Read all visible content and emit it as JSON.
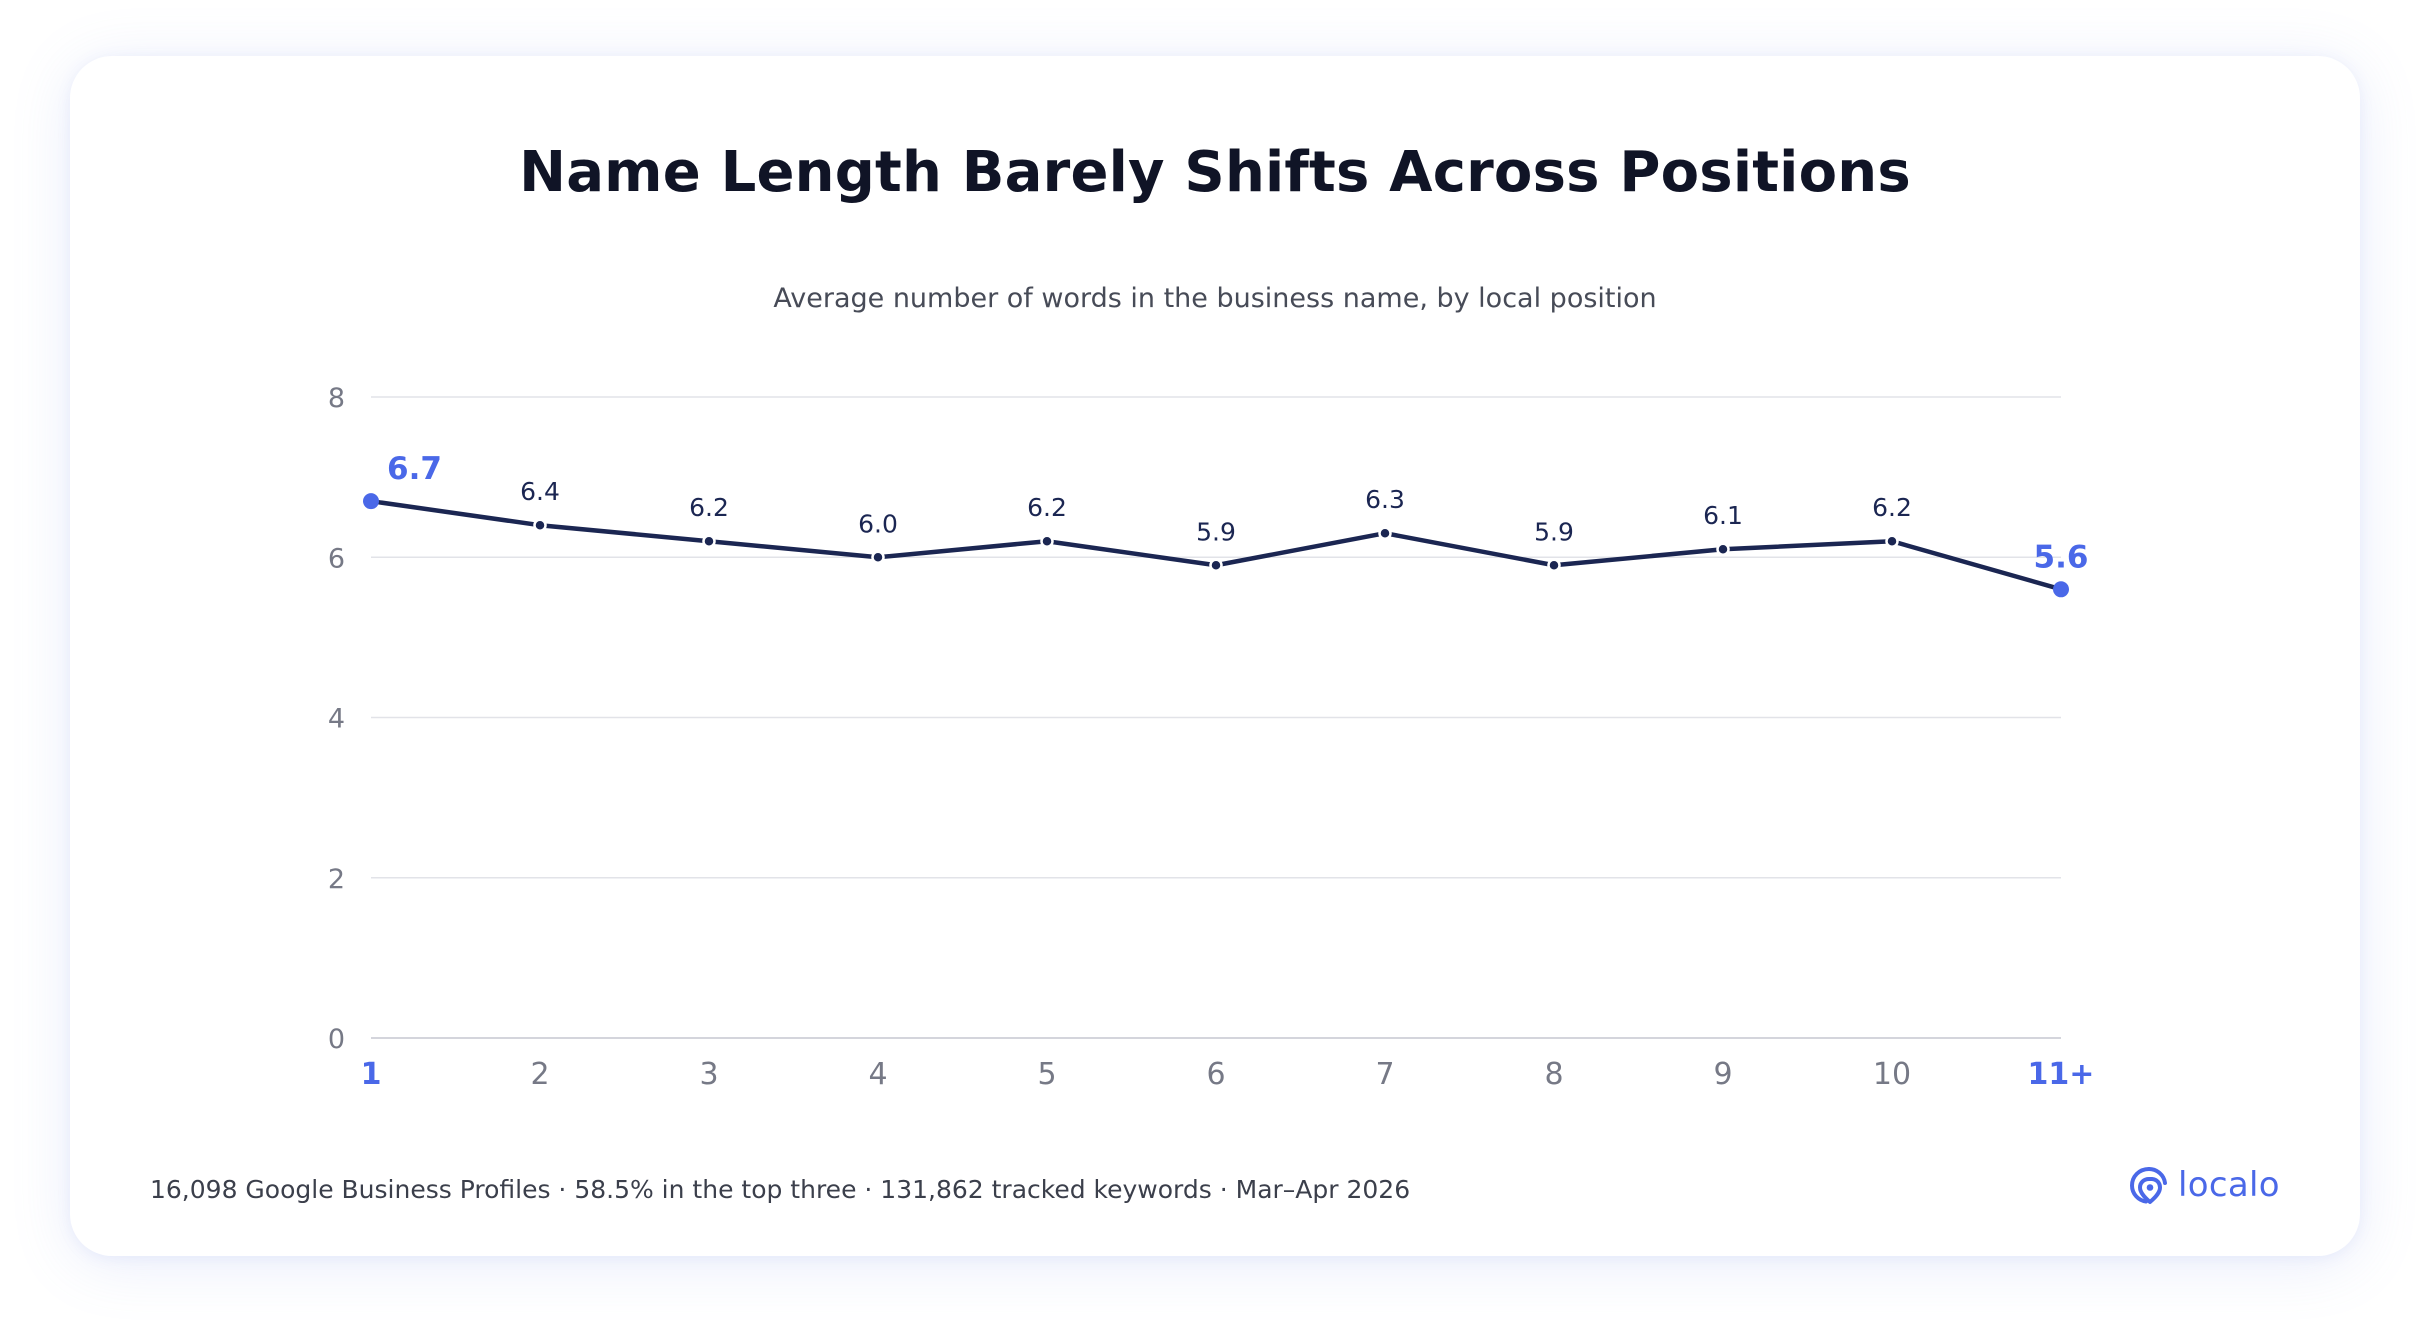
{
  "title": "Name Length Barely Shifts Across Positions",
  "subtitle": "Average number of words in the business name, by local position",
  "footer": "16,098 Google Business Profiles · 58.5% in the top three · 131,862 tracked keywords · Mar–Apr 2026",
  "brand": {
    "name": "localo",
    "logo_icon": "location-pin-swirl-icon"
  },
  "colors": {
    "line": "#1b2652",
    "highlight": "#4a68e8",
    "grid": "#e2e3e8",
    "axis_text": "#767986"
  },
  "chart_data": {
    "type": "line",
    "title": "Name Length Barely Shifts Across Positions",
    "subtitle": "Average number of words in the business name, by local position",
    "categories": [
      "1",
      "2",
      "3",
      "4",
      "5",
      "6",
      "7",
      "8",
      "9",
      "10",
      "11+"
    ],
    "series": [
      {
        "values": [
          6.7,
          6.4,
          6.2,
          6.0,
          6.2,
          5.9,
          6.3,
          5.9,
          6.1,
          6.2,
          5.6
        ]
      }
    ],
    "data_labels": [
      "6.7",
      "6.4",
      "6.2",
      "6.0",
      "6.2",
      "5.9",
      "6.3",
      "5.9",
      "6.1",
      "6.2",
      "5.6"
    ],
    "highlighted_categories": [
      "1",
      "11+"
    ],
    "ylim": [
      0,
      8
    ],
    "yticks": [
      "0",
      "2",
      "4",
      "6",
      "8"
    ],
    "grid": true,
    "legend": "none"
  }
}
